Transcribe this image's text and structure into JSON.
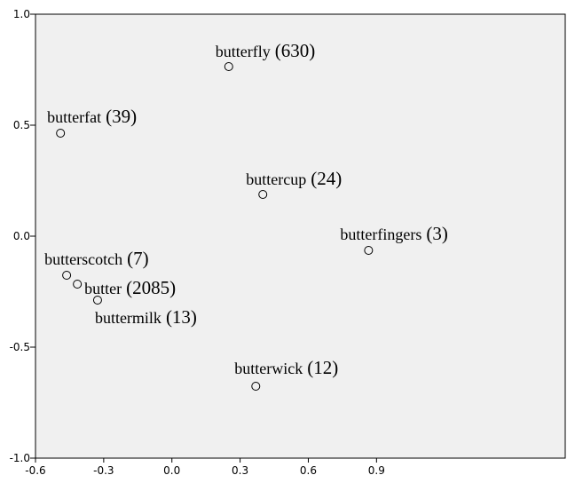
{
  "chart_data": {
    "type": "scatter",
    "x": [
      0.25,
      -0.49,
      0.4,
      0.865,
      -0.463,
      -0.416,
      -0.327,
      0.369
    ],
    "values": [
      0.764,
      0.464,
      0.188,
      -0.064,
      -0.176,
      -0.216,
      -0.288,
      -0.676
    ],
    "annotations": [
      {
        "name": "butterfly",
        "count": "(630)"
      },
      {
        "name": "butterfat",
        "count": "(39)"
      },
      {
        "name": "buttercup",
        "count": "(24)"
      },
      {
        "name": "butterfingers",
        "count": "(3)"
      },
      {
        "name": "butterscotch",
        "count": "(7)"
      },
      {
        "name": "butter",
        "count": "(2085)"
      },
      {
        "name": "buttermilk",
        "count": "(13)"
      },
      {
        "name": "butterwick",
        "count": "(12)"
      }
    ],
    "xlim": [
      -0.6,
      1.73
    ],
    "ylim": [
      -1.0,
      1.0
    ],
    "xticks": [
      -0.6,
      -0.3,
      {
        "value": 0,
        "label": "0.0"
      },
      0.3,
      0.6,
      0.9
    ],
    "yticks": [
      {
        "value": -1.0,
        "label": "-1.0"
      },
      -0.5,
      {
        "value": 0,
        "label": "0.0"
      },
      0.5,
      {
        "value": 1.0,
        "label": "1.0"
      }
    ],
    "color": "#000000",
    "background": "#f0f0f0"
  }
}
